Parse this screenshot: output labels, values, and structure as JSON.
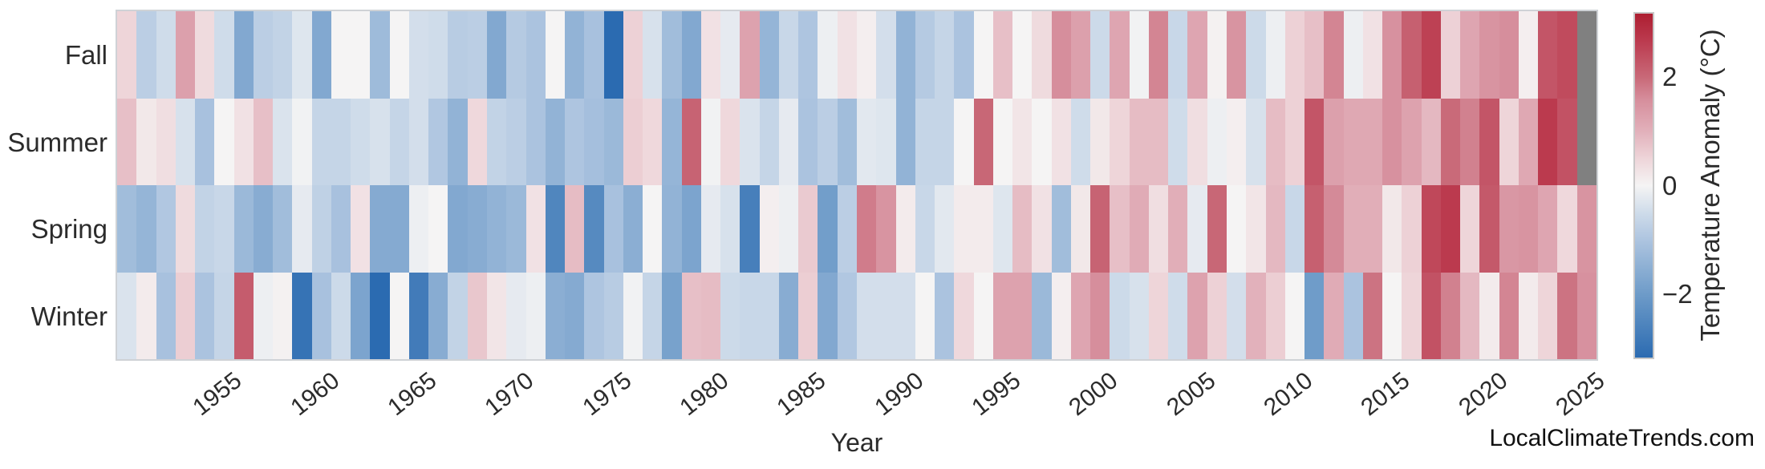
{
  "page": {
    "background": "#ffffff"
  },
  "x_axis": {
    "title": "Year"
  },
  "colorbar": {
    "title": "Temperature Anomaly (°C)",
    "ticks": [
      {
        "label": "2",
        "value": 2
      },
      {
        "label": "0",
        "value": 0
      },
      {
        "label": "−2",
        "value": -2
      }
    ]
  },
  "watermark": {
    "text": "LocalClimateTrends.com"
  },
  "chart_data": {
    "type": "heatmap",
    "title": "",
    "xlabel": "Year",
    "ylabel": "",
    "colorbar_label": "Temperature Anomaly (°C)",
    "rows": [
      "Fall",
      "Summer",
      "Spring",
      "Winter"
    ],
    "x_start": 1950,
    "x_end": 2025,
    "x_tick_years": [
      1955,
      1960,
      1965,
      1970,
      1975,
      1980,
      1985,
      1990,
      1995,
      2000,
      2005,
      2010,
      2015,
      2020,
      2025
    ],
    "vmin": -3.2,
    "vmax": 3.2,
    "grid": false,
    "legend_position": "colorbar-right",
    "missing_color": "#808080",
    "colormap_stops": [
      {
        "v": -3.2,
        "c": "#2b6bb1"
      },
      {
        "v": -2.0,
        "c": "#6f9cc9"
      },
      {
        "v": -1.0,
        "c": "#aec5e0"
      },
      {
        "v": -0.5,
        "c": "#cfdcea"
      },
      {
        "v": 0.0,
        "c": "#f5f4f4"
      },
      {
        "v": 0.5,
        "c": "#eed5d9"
      },
      {
        "v": 1.0,
        "c": "#e2b1bb"
      },
      {
        "v": 1.6,
        "c": "#d68e9c"
      },
      {
        "v": 2.0,
        "c": "#c96a79"
      },
      {
        "v": 2.7,
        "c": "#bb3a4e"
      },
      {
        "v": 3.2,
        "c": "#ad1e31"
      }
    ],
    "series": [
      {
        "name": "Fall",
        "values": [
          0.5,
          -0.8,
          -0.5,
          1.3,
          0.4,
          -0.5,
          -1.7,
          -0.8,
          -0.7,
          -0.3,
          -1.7,
          0,
          0,
          -1.25,
          0,
          -0.45,
          -0.5,
          -0.85,
          -0.8,
          -1.7,
          -0.9,
          -1.05,
          0,
          -1.45,
          -1.1,
          -3.2,
          0.55,
          -0.4,
          -1.2,
          -1.7,
          0.3,
          -0.2,
          1.25,
          -1.4,
          -0.6,
          -1.0,
          -0.1,
          0.3,
          0.1,
          -0.45,
          -1.45,
          -0.9,
          -0.65,
          -1.05,
          0,
          0.8,
          0,
          0.4,
          1.6,
          1.3,
          -0.55,
          1.2,
          -0.05,
          1.7,
          -0.6,
          1.2,
          0.05,
          1.5,
          -0.55,
          -0.1,
          0.55,
          0.8,
          1.7,
          -0.1,
          0.3,
          1.55,
          2.15,
          2.6,
          0.55,
          1.2,
          1.5,
          1.6,
          0.1,
          2.3,
          2.45,
          null
        ]
      },
      {
        "name": "Summer",
        "values": [
          0.8,
          0.2,
          0.35,
          -0.4,
          -1.1,
          0,
          0.3,
          0.8,
          -0.35,
          -0.05,
          -0.65,
          -0.65,
          -0.5,
          -0.4,
          -0.65,
          -0.45,
          -0.95,
          -1.45,
          0.45,
          -0.7,
          -0.8,
          -1.05,
          -1.45,
          -1.0,
          -1.15,
          -1.3,
          0.6,
          0.45,
          -1.4,
          2.1,
          -0.05,
          0.45,
          -0.35,
          -0.65,
          -0.2,
          -1.05,
          -0.8,
          -1.2,
          -0.25,
          -0.3,
          -1.45,
          -0.65,
          -0.65,
          0,
          2.05,
          0,
          0.25,
          0,
          0.3,
          -0.5,
          0.2,
          0.5,
          0.85,
          0.85,
          -0.5,
          0.35,
          -0.1,
          0.1,
          -0.4,
          0.85,
          0.55,
          2.3,
          1.3,
          1.15,
          1.15,
          1.55,
          1.25,
          0.9,
          2.0,
          1.75,
          2.3,
          0.5,
          1.15,
          2.7,
          2.35,
          null
        ]
      },
      {
        "name": "Spring",
        "values": [
          -1.2,
          -1.4,
          -0.95,
          0.4,
          -0.7,
          -0.6,
          -1.3,
          -1.6,
          -1.2,
          -0.2,
          -0.75,
          -1.1,
          0.3,
          -1.65,
          -1.65,
          -0.1,
          0,
          -1.7,
          -1.6,
          -1.45,
          -1.3,
          0.3,
          -2.55,
          0.85,
          -2.45,
          -1.1,
          -1.55,
          0,
          -1.45,
          -1.8,
          -0.2,
          -0.4,
          -2.7,
          0.1,
          -0.1,
          0.65,
          -1.95,
          -0.8,
          1.8,
          1.5,
          0.15,
          -0.6,
          -0.25,
          0.15,
          0.15,
          -0.3,
          0.85,
          0.3,
          -1.2,
          0.2,
          2.1,
          0.8,
          1.1,
          0.35,
          1.05,
          -0.2,
          2.05,
          0,
          0.25,
          0.9,
          -0.6,
          2.15,
          1.65,
          1.05,
          1.05,
          0.2,
          0.55,
          2.5,
          2.7,
          0.5,
          2.25,
          1.45,
          1.5,
          1.2,
          0.45,
          1.5
        ]
      },
      {
        "name": "Winter",
        "values": [
          -0.35,
          0.15,
          -1.1,
          0.6,
          -1.05,
          -0.65,
          2.2,
          -0.1,
          0.05,
          -3.0,
          -1.1,
          -0.55,
          -1.8,
          -3.2,
          0,
          -2.8,
          -1.6,
          -0.7,
          0.7,
          0.25,
          -0.2,
          -0.1,
          -1.55,
          -1.65,
          -1.0,
          -0.85,
          -0.05,
          -0.65,
          -1.85,
          0.8,
          0.85,
          -0.55,
          -0.6,
          -0.6,
          -1.6,
          0.6,
          -1.7,
          -0.95,
          -0.45,
          -0.45,
          -0.45,
          0,
          -1.05,
          0.45,
          0,
          1.25,
          1.25,
          -1.3,
          0.1,
          1.2,
          1.6,
          -0.55,
          -0.4,
          0.5,
          -0.5,
          1.25,
          0.55,
          -0.45,
          1.0,
          0.6,
          0,
          -2.0,
          1.1,
          -1.05,
          1.9,
          0,
          0.5,
          2.35,
          1.75,
          0.9,
          0.15,
          1.7,
          0.15,
          0.5,
          1.9,
          1.55
        ]
      }
    ]
  }
}
